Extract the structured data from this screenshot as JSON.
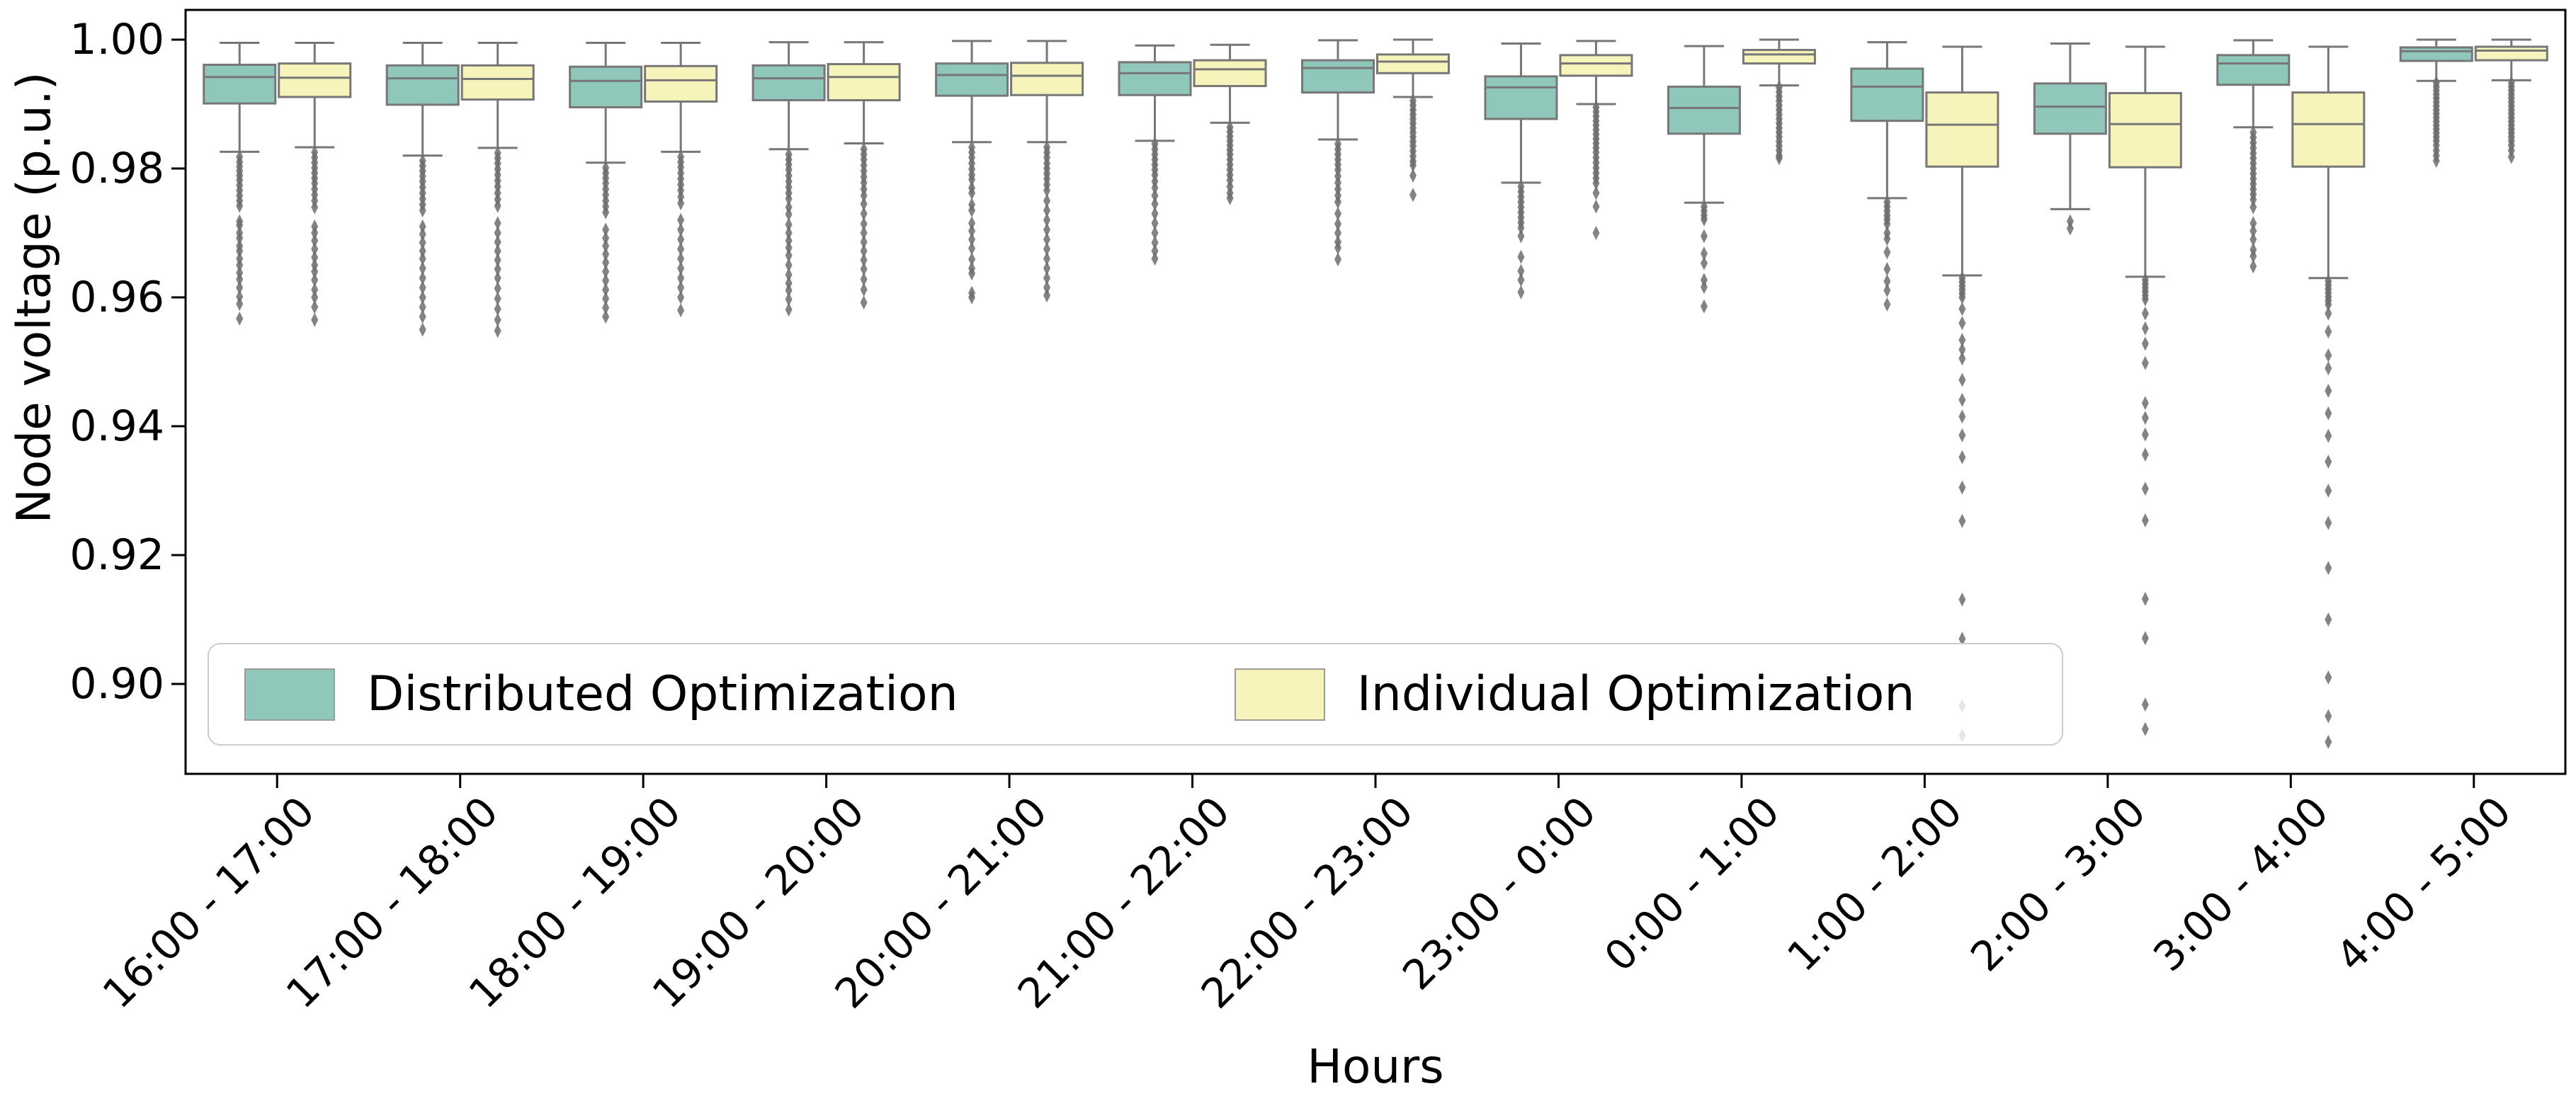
{
  "chart_data": {
    "type": "box",
    "xlabel": "Hours",
    "ylabel": "Node voltage (p.u.)",
    "categories": [
      "16:00 - 17:00",
      "17:00 - 18:00",
      "18:00 - 19:00",
      "19:00 - 20:00",
      "20:00 - 21:00",
      "21:00 - 22:00",
      "22:00 - 23:00",
      "23:00 - 0:00",
      "0:00 - 1:00",
      "1:00 - 2:00",
      "2:00 - 3:00",
      "3:00 - 4:00",
      "4:00 - 5:00"
    ],
    "yticks": [
      1.0,
      0.98,
      0.96,
      0.94,
      0.92,
      0.9
    ],
    "ytick_labels": [
      "1.00",
      "0.98",
      "0.96",
      "0.94",
      "0.92",
      "0.90"
    ],
    "ylim": [
      0.886,
      1.0046
    ],
    "grid": false,
    "legend_position": "lower left",
    "line_color": "#777777",
    "flier_color": "#6d6d6d",
    "series": [
      {
        "name": "Distributed Optimization",
        "color": "#8fc7ba",
        "boxes": [
          {
            "whislo": 0.9826,
            "q1": 0.9901,
            "med": 0.9942,
            "q3": 0.9961,
            "whishi": 0.9995,
            "fliers": [
              0.9818,
              0.981,
              0.9803,
              0.9796,
              0.9789,
              0.9782,
              0.9774,
              0.9766,
              0.9758,
              0.975,
              0.9742,
              0.9718,
              0.9712,
              0.97,
              0.9692,
              0.968,
              0.9672,
              0.966,
              0.965,
              0.9638,
              0.9628,
              0.9615,
              0.9601,
              0.959,
              0.9567
            ]
          },
          {
            "whislo": 0.982,
            "q1": 0.9899,
            "med": 0.994,
            "q3": 0.996,
            "whishi": 0.9995,
            "fliers": [
              0.9812,
              0.9804,
              0.9796,
              0.9788,
              0.978,
              0.9771,
              0.9762,
              0.9753,
              0.9744,
              0.9735,
              0.971,
              0.9698,
              0.9685,
              0.9672,
              0.966,
              0.9645,
              0.963,
              0.9615,
              0.96,
              0.9585,
              0.957,
              0.955
            ]
          },
          {
            "whislo": 0.9809,
            "q1": 0.9895,
            "med": 0.9936,
            "q3": 0.9958,
            "whishi": 0.9995,
            "fliers": [
              0.9801,
              0.9793,
              0.9785,
              0.9777,
              0.9768,
              0.9759,
              0.975,
              0.9741,
              0.9732,
              0.9705,
              0.9692,
              0.968,
              0.9667,
              0.9654,
              0.964,
              0.9626,
              0.9612,
              0.9598,
              0.9584,
              0.957
            ]
          },
          {
            "whislo": 0.983,
            "q1": 0.9906,
            "med": 0.994,
            "q3": 0.996,
            "whishi": 0.9996,
            "fliers": [
              0.9822,
              0.9814,
              0.9806,
              0.9798,
              0.9789,
              0.978,
              0.9771,
              0.9762,
              0.9753,
              0.974,
              0.9729,
              0.9713,
              0.97,
              0.9688,
              0.9677,
              0.9665,
              0.965,
              0.9635,
              0.9622,
              0.9611,
              0.9597,
              0.9581
            ]
          },
          {
            "whislo": 0.9841,
            "q1": 0.9913,
            "med": 0.9945,
            "q3": 0.9963,
            "whishi": 0.9998,
            "fliers": [
              0.9833,
              0.9825,
              0.9817,
              0.9808,
              0.9799,
              0.979,
              0.9783,
              0.977,
              0.9762,
              0.9744,
              0.9735,
              0.9715,
              0.9703,
              0.969,
              0.9676,
              0.9659,
              0.9645,
              0.9637,
              0.9607,
              0.96
            ]
          },
          {
            "whislo": 0.9843,
            "q1": 0.9914,
            "med": 0.9948,
            "q3": 0.9965,
            "whishi": 0.9991,
            "fliers": [
              0.9838,
              0.983,
              0.9822,
              0.9814,
              0.9806,
              0.9798,
              0.979,
              0.978,
              0.977,
              0.9758,
              0.9745,
              0.973,
              0.9715,
              0.97,
              0.9685,
              0.9672,
              0.966
            ]
          },
          {
            "whislo": 0.9845,
            "q1": 0.9918,
            "med": 0.9956,
            "q3": 0.9968,
            "whishi": 0.9999,
            "fliers": [
              0.9838,
              0.983,
              0.9822,
              0.9814,
              0.9806,
              0.9798,
              0.9788,
              0.9778,
              0.9768,
              0.9758,
              0.9748,
              0.973,
              0.9714,
              0.97,
              0.9686,
              0.9677,
              0.9659
            ]
          },
          {
            "whislo": 0.9778,
            "q1": 0.9877,
            "med": 0.9926,
            "q3": 0.9943,
            "whishi": 0.9994,
            "fliers": [
              0.9772,
              0.9764,
              0.9756,
              0.9748,
              0.974,
              0.9732,
              0.9724,
              0.9716,
              0.9708,
              0.9695,
              0.9663,
              0.9641,
              0.9627,
              0.9608
            ]
          },
          {
            "whislo": 0.9747,
            "q1": 0.9854,
            "med": 0.9894,
            "q3": 0.9927,
            "whishi": 0.999,
            "fliers": [
              0.9741,
              0.9734,
              0.9727,
              0.9721,
              0.9695,
              0.9668,
              0.9653,
              0.9627,
              0.9616,
              0.9586
            ]
          },
          {
            "whislo": 0.9754,
            "q1": 0.9874,
            "med": 0.9927,
            "q3": 0.9955,
            "whishi": 0.9996,
            "fliers": [
              0.9748,
              0.9741,
              0.9734,
              0.9727,
              0.9721,
              0.9714,
              0.97,
              0.9691,
              0.967,
              0.9644,
              0.9625,
              0.9611,
              0.9589
            ]
          },
          {
            "whislo": 0.9737,
            "q1": 0.9854,
            "med": 0.9896,
            "q3": 0.9932,
            "whishi": 0.9994,
            "fliers": [
              0.9718,
              0.9707
            ]
          },
          {
            "whislo": 0.9864,
            "q1": 0.993,
            "med": 0.9963,
            "q3": 0.9976,
            "whishi": 0.9999,
            "fliers": [
              0.9856,
              0.9848,
              0.984,
              0.9832,
              0.9824,
              0.9816,
              0.9808,
              0.98,
              0.9792,
              0.9784,
              0.9776,
              0.9768,
              0.976,
              0.9752,
              0.974,
              0.9715,
              0.9703,
              0.969,
              0.9674,
              0.9664,
              0.9648
            ]
          },
          {
            "whislo": 0.9936,
            "q1": 0.9967,
            "med": 0.9982,
            "q3": 0.9988,
            "whishi": 1.0,
            "fliers": [
              0.9933,
              0.9927,
              0.9921,
              0.9915,
              0.9909,
              0.9903,
              0.9897,
              0.9891,
              0.9885,
              0.9879,
              0.9873,
              0.9867,
              0.9861,
              0.9855,
              0.9849,
              0.9843,
              0.9836,
              0.9828,
              0.982,
              0.9812
            ]
          }
        ]
      },
      {
        "name": "Individual Optimization",
        "color": "#f6f3bb",
        "boxes": [
          {
            "whislo": 0.9833,
            "q1": 0.9911,
            "med": 0.9941,
            "q3": 0.9963,
            "whishi": 0.9995,
            "fliers": [
              0.9825,
              0.9817,
              0.9809,
              0.9801,
              0.9793,
              0.9785,
              0.9777,
              0.9768,
              0.9759,
              0.975,
              0.974,
              0.971,
              0.97,
              0.9688,
              0.9675,
              0.9662,
              0.965,
              0.964,
              0.9627,
              0.9612,
              0.96,
              0.9585,
              0.9565
            ]
          },
          {
            "whislo": 0.9832,
            "q1": 0.9907,
            "med": 0.9939,
            "q3": 0.996,
            "whishi": 0.9995,
            "fliers": [
              0.9824,
              0.9816,
              0.9808,
              0.9799,
              0.979,
              0.9781,
              0.9772,
              0.9762,
              0.9752,
              0.9742,
              0.9715,
              0.97,
              0.9686,
              0.9672,
              0.9658,
              0.9644,
              0.963,
              0.9614,
              0.9598,
              0.9582,
              0.9565,
              0.9548
            ]
          },
          {
            "whislo": 0.9826,
            "q1": 0.9904,
            "med": 0.9937,
            "q3": 0.9959,
            "whishi": 0.9995,
            "fliers": [
              0.9818,
              0.981,
              0.9802,
              0.9793,
              0.9784,
              0.9775,
              0.9766,
              0.9756,
              0.9746,
              0.972,
              0.9705,
              0.969,
              0.9675,
              0.966,
              0.9645,
              0.963,
              0.9615,
              0.96,
              0.958
            ]
          },
          {
            "whislo": 0.9839,
            "q1": 0.9906,
            "med": 0.9942,
            "q3": 0.9962,
            "whishi": 0.9996,
            "fliers": [
              0.983,
              0.9822,
              0.9814,
              0.9805,
              0.9796,
              0.9787,
              0.9778,
              0.9768,
              0.9758,
              0.9745,
              0.973,
              0.9714,
              0.97,
              0.9686,
              0.9672,
              0.9658,
              0.9644,
              0.9628,
              0.9612,
              0.9592
            ]
          },
          {
            "whislo": 0.9841,
            "q1": 0.9914,
            "med": 0.9944,
            "q3": 0.9964,
            "whishi": 0.9998,
            "fliers": [
              0.9833,
              0.9825,
              0.9817,
              0.9808,
              0.98,
              0.9792,
              0.9784,
              0.9775,
              0.9766,
              0.975,
              0.9735,
              0.972,
              0.9705,
              0.969,
              0.9675,
              0.966,
              0.9645,
              0.963,
              0.9615,
              0.9603
            ]
          },
          {
            "whislo": 0.9871,
            "q1": 0.9928,
            "med": 0.9954,
            "q3": 0.9968,
            "whishi": 0.9992,
            "fliers": [
              0.9864,
              0.9857,
              0.985,
              0.9843,
              0.9836,
              0.9829,
              0.9822,
              0.9814,
              0.9806,
              0.9798,
              0.979,
              0.9782,
              0.9772,
              0.9762,
              0.9754
            ]
          },
          {
            "whislo": 0.9911,
            "q1": 0.9948,
            "med": 0.9966,
            "q3": 0.9977,
            "whishi": 1.0,
            "fliers": [
              0.9905,
              0.9898,
              0.9891,
              0.9884,
              0.9877,
              0.987,
              0.9863,
              0.9856,
              0.9849,
              0.9842,
              0.9835,
              0.9827,
              0.9819,
              0.9811,
              0.9805,
              0.9789,
              0.9759
            ]
          },
          {
            "whislo": 0.99,
            "q1": 0.9944,
            "med": 0.9963,
            "q3": 0.9976,
            "whishi": 0.9998,
            "fliers": [
              0.9895,
              0.9888,
              0.9881,
              0.9874,
              0.9867,
              0.986,
              0.9853,
              0.9846,
              0.9839,
              0.9832,
              0.9825,
              0.9817,
              0.9809,
              0.9801,
              0.9793,
              0.9785,
              0.9777,
              0.9762,
              0.9741,
              0.97
            ]
          },
          {
            "whislo": 0.9929,
            "q1": 0.9963,
            "med": 0.9977,
            "q3": 0.9984,
            "whishi": 1.0,
            "fliers": [
              0.9926,
              0.9919,
              0.9912,
              0.9905,
              0.9898,
              0.9891,
              0.9884,
              0.9877,
              0.987,
              0.9863,
              0.9856,
              0.9849,
              0.9842,
              0.9835,
              0.9828,
              0.982,
              0.9816
            ]
          },
          {
            "whislo": 0.9634,
            "q1": 0.9803,
            "med": 0.9868,
            "q3": 0.9918,
            "whishi": 0.9989,
            "fliers": [
              0.963,
              0.9624,
              0.9618,
              0.9612,
              0.9606,
              0.96,
              0.9582,
              0.956,
              0.9534,
              0.9519,
              0.9505,
              0.9472,
              0.9441,
              0.9415,
              0.9386,
              0.9352,
              0.9305,
              0.9253,
              0.9131,
              0.907,
              0.8966,
              0.892
            ]
          },
          {
            "whislo": 0.9632,
            "q1": 0.9802,
            "med": 0.9869,
            "q3": 0.9917,
            "whishi": 0.9989,
            "fliers": [
              0.9627,
              0.9621,
              0.9615,
              0.9609,
              0.9603,
              0.9597,
              0.9575,
              0.9552,
              0.9528,
              0.9498,
              0.9436,
              0.9413,
              0.9387,
              0.9356,
              0.9303,
              0.9254,
              0.9132,
              0.9071,
              0.8968,
              0.893
            ]
          },
          {
            "whislo": 0.963,
            "q1": 0.9803,
            "med": 0.9869,
            "q3": 0.9918,
            "whishi": 0.9989,
            "fliers": [
              0.9625,
              0.9619,
              0.9613,
              0.9607,
              0.9601,
              0.9595,
              0.9589,
              0.9575,
              0.9547,
              0.951,
              0.949,
              0.9455,
              0.942,
              0.9385,
              0.9345,
              0.93,
              0.925,
              0.918,
              0.91,
              0.901,
              0.895,
              0.891
            ]
          },
          {
            "whislo": 0.9937,
            "q1": 0.9968,
            "med": 0.9983,
            "q3": 0.9989,
            "whishi": 1.0,
            "fliers": [
              0.9933,
              0.9927,
              0.9921,
              0.9915,
              0.9909,
              0.9903,
              0.9897,
              0.9891,
              0.9885,
              0.9879,
              0.9873,
              0.9867,
              0.9861,
              0.9855,
              0.9849,
              0.9843,
              0.9836,
              0.9828,
              0.9818
            ]
          }
        ]
      }
    ]
  }
}
